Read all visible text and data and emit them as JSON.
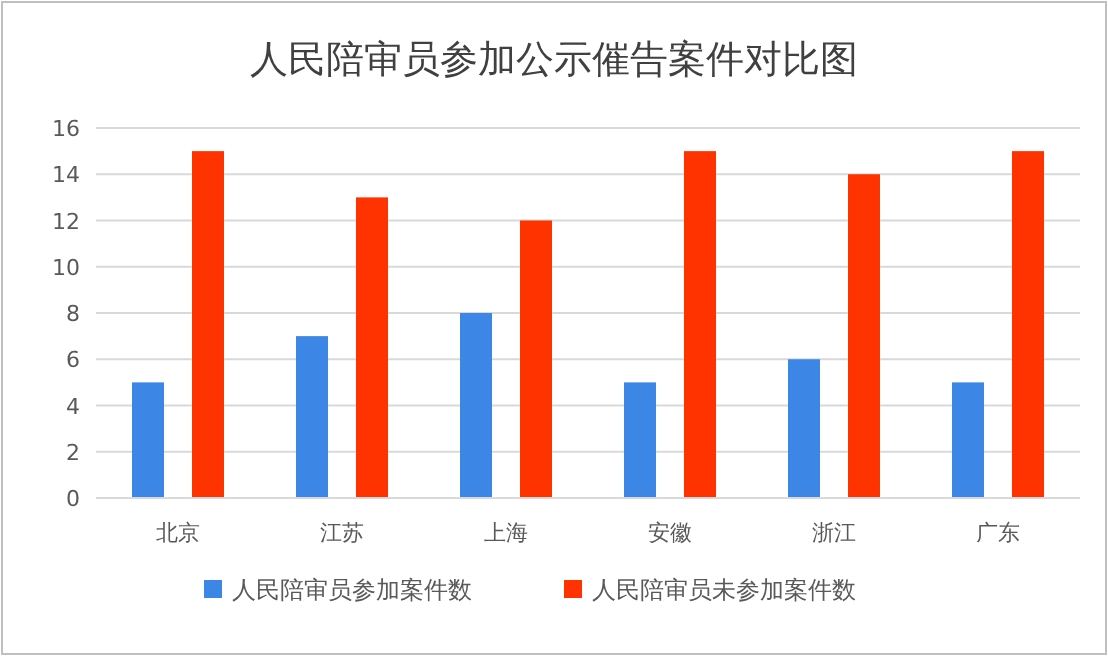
{
  "chart_data": {
    "type": "bar",
    "title": "人民陪审员参加公示催告案件对比图",
    "categories": [
      "北京",
      "江苏",
      "上海",
      "安徽",
      "浙江",
      "广东"
    ],
    "series": [
      {
        "name": "人民陪审员参加案件数",
        "color": "#3c87e6",
        "values": [
          5,
          7,
          8,
          5,
          6,
          5
        ]
      },
      {
        "name": "人民陪审员未参加案件数",
        "color": "#ff3300",
        "values": [
          15,
          13,
          12,
          15,
          14,
          15
        ]
      }
    ],
    "ylim": [
      0,
      16
    ],
    "yticks": [
      0,
      2,
      4,
      6,
      8,
      10,
      12,
      14,
      16
    ],
    "grid": "y",
    "legend": "bottom"
  }
}
